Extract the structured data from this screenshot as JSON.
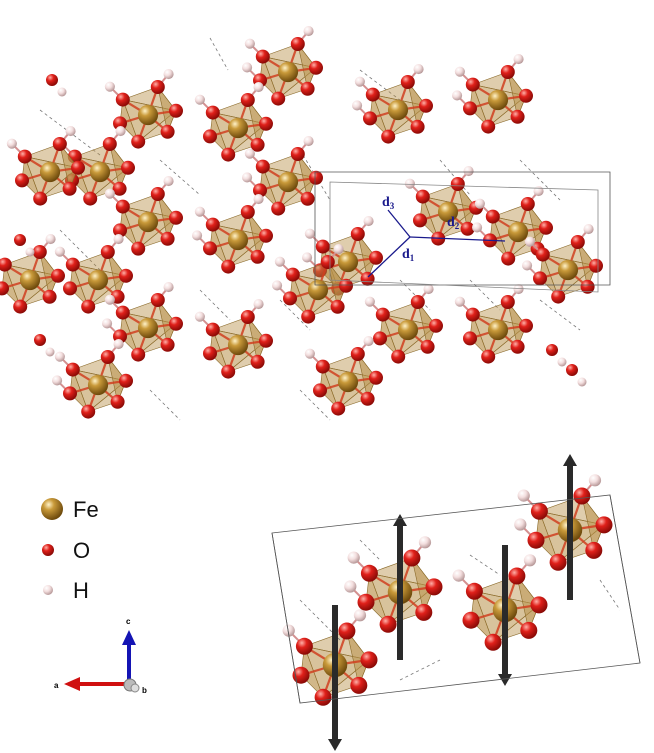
{
  "legend": {
    "fe_label": "Fe",
    "o_label": "O",
    "h_label": "H"
  },
  "distances": {
    "d1_main": "d",
    "d1_sub": "1",
    "d2_main": "d",
    "d2_sub": "2",
    "d3_main": "d",
    "d3_sub": "3"
  },
  "axes": {
    "a": "a",
    "b": "b",
    "c": "c"
  },
  "colors": {
    "fe": "#a87a1e",
    "o": "#e0201a",
    "h": "#f2dada",
    "octahedron": "#b8914a",
    "bond": "#d04020",
    "spin_arrow": "#2a2a2a",
    "distance_line": "#1a1a8c"
  }
}
